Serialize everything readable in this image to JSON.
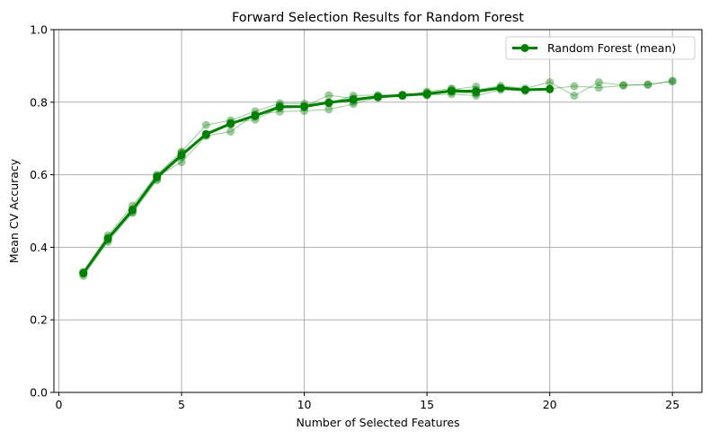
{
  "chart_data": {
    "type": "line",
    "title": "Forward Selection Results for Random Forest",
    "xlabel": "Number of Selected Features",
    "ylabel": "Mean CV Accuracy",
    "xlim": [
      -0.2,
      26.2
    ],
    "ylim": [
      0.0,
      1.0
    ],
    "xticks": [
      0,
      5,
      10,
      15,
      20,
      25
    ],
    "yticks": [
      0.0,
      0.2,
      0.4,
      0.6,
      0.8,
      1.0
    ],
    "xtick_labels": [
      "0",
      "5",
      "10",
      "15",
      "20",
      "25"
    ],
    "ytick_labels": [
      "0.0",
      "0.2",
      "0.4",
      "0.6",
      "0.8",
      "1.0"
    ],
    "grid": true,
    "legend_position": "top-right",
    "color": "#008000",
    "runs": [
      {
        "x": [
          1,
          2,
          3,
          4,
          5,
          6,
          7,
          8,
          9,
          10,
          11,
          12,
          13,
          14,
          15,
          16,
          17,
          18,
          19,
          20,
          21,
          22,
          23,
          24,
          25
        ],
        "y": [
          0.321,
          0.415,
          0.497,
          0.589,
          0.649,
          0.712,
          0.743,
          0.76,
          0.785,
          0.788,
          0.819,
          0.81,
          0.816,
          0.821,
          0.826,
          0.831,
          0.834,
          0.845,
          0.838,
          0.855,
          0.818,
          0.855,
          0.847,
          0.848,
          0.859
        ]
      },
      {
        "x": [
          1,
          2,
          3,
          4,
          5,
          6,
          7,
          8,
          9,
          10,
          11,
          12,
          13,
          14,
          15,
          16,
          17,
          18,
          19,
          20,
          21,
          22,
          23,
          24,
          25
        ],
        "y": [
          0.333,
          0.433,
          0.515,
          0.6,
          0.664,
          0.737,
          0.75,
          0.775,
          0.797,
          0.796,
          0.797,
          0.818,
          0.82,
          0.818,
          0.82,
          0.822,
          0.818,
          0.834,
          0.831,
          0.837,
          0.844,
          0.84,
          0.846,
          0.849,
          0.857
        ]
      },
      {
        "x": [
          1,
          2,
          3,
          4,
          5,
          6,
          7,
          8,
          9,
          10,
          11,
          12,
          13,
          14,
          15,
          16,
          17,
          18,
          19,
          20
        ],
        "y": [
          0.327,
          0.426,
          0.505,
          0.595,
          0.635,
          0.707,
          0.719,
          0.766,
          0.774,
          0.776,
          0.78,
          0.795,
          0.812,
          0.817,
          0.829,
          0.838,
          0.826,
          0.838,
          0.833,
          0.836
        ]
      },
      {
        "x": [
          1,
          2,
          3,
          4,
          5,
          6,
          7,
          8,
          9,
          10,
          11,
          12,
          13,
          14,
          15,
          16,
          17
        ],
        "y": [
          0.33,
          0.42,
          0.495,
          0.585,
          0.66,
          0.71,
          0.742,
          0.752,
          0.785,
          0.786,
          0.799,
          0.801,
          0.815,
          0.82,
          0.819,
          0.835,
          0.843
        ]
      },
      {
        "x": [
          1,
          2,
          3,
          4,
          5,
          6,
          7,
          8,
          9,
          10,
          11,
          12,
          13,
          14,
          15,
          16,
          17
        ],
        "y": [
          0.328,
          0.424,
          0.503,
          0.597,
          0.658,
          0.709,
          0.738,
          0.762,
          0.791,
          0.789,
          0.797,
          0.809,
          0.813,
          0.818,
          0.821,
          0.828,
          0.824
        ]
      }
    ],
    "series": [
      {
        "name": "Random Forest (mean)",
        "x": [
          1,
          2,
          3,
          4,
          5,
          6,
          7,
          8,
          9,
          10,
          11,
          12,
          13,
          14,
          15,
          16,
          17,
          18,
          19,
          20
        ],
        "y": [
          0.329,
          0.424,
          0.503,
          0.594,
          0.654,
          0.712,
          0.741,
          0.763,
          0.787,
          0.788,
          0.799,
          0.807,
          0.815,
          0.819,
          0.823,
          0.831,
          0.83,
          0.839,
          0.834,
          0.836
        ]
      }
    ]
  }
}
